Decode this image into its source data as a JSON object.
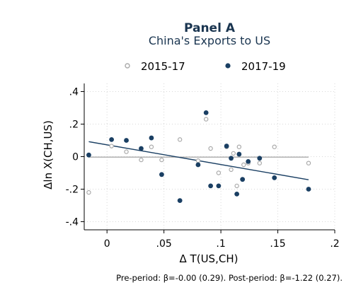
{
  "chart_data": {
    "type": "scatter",
    "title": "Panel A",
    "subtitle": "China's Exports to US",
    "xlabel": "Δ T(US,CH)",
    "ylabel": "Δln X(CH,US)",
    "xlim": [
      -0.02,
      0.2
    ],
    "ylim": [
      -0.45,
      0.45
    ],
    "xticks": [
      0,
      0.05,
      0.1,
      0.15,
      0.2
    ],
    "xtick_labels": [
      "0",
      ".05",
      ".1",
      ".15",
      ".2"
    ],
    "yticks": [
      -0.4,
      -0.2,
      0,
      0.2,
      0.4
    ],
    "ytick_labels": [
      "-.4",
      "-.2",
      "0",
      ".2",
      ".4"
    ],
    "grid": "dotted",
    "legend_position": "top",
    "note": "Pre-period: β=-0.00 (0.29). Post-period: β=-1.22 (0.27).",
    "series": [
      {
        "name": "2015-17",
        "marker": "hollow-circle",
        "color": "#aaaaaa",
        "points": [
          [
            -0.016,
            -0.22
          ],
          [
            0.004,
            0.065
          ],
          [
            0.017,
            0.03
          ],
          [
            0.03,
            -0.02
          ],
          [
            0.039,
            0.06
          ],
          [
            0.048,
            -0.02
          ],
          [
            0.064,
            0.105
          ],
          [
            0.08,
            -0.025
          ],
          [
            0.087,
            0.23
          ],
          [
            0.091,
            0.05
          ],
          [
            0.098,
            -0.1
          ],
          [
            0.105,
            0.06
          ],
          [
            0.109,
            -0.08
          ],
          [
            0.111,
            0.02
          ],
          [
            0.114,
            -0.18
          ],
          [
            0.116,
            0.06
          ],
          [
            0.12,
            -0.05
          ],
          [
            0.124,
            -0.04
          ],
          [
            0.134,
            -0.04
          ],
          [
            0.147,
            0.06
          ],
          [
            0.177,
            -0.04
          ]
        ]
      },
      {
        "name": "2017-19",
        "marker": "filled-circle",
        "color": "#1a3f63",
        "points": [
          [
            -0.016,
            0.01
          ],
          [
            0.004,
            0.105
          ],
          [
            0.017,
            0.1
          ],
          [
            0.03,
            0.05
          ],
          [
            0.039,
            0.115
          ],
          [
            0.048,
            -0.11
          ],
          [
            0.064,
            -0.27
          ],
          [
            0.08,
            -0.05
          ],
          [
            0.087,
            0.27
          ],
          [
            0.091,
            -0.18
          ],
          [
            0.098,
            -0.18
          ],
          [
            0.105,
            0.065
          ],
          [
            0.109,
            -0.01
          ],
          [
            0.114,
            -0.23
          ],
          [
            0.116,
            0.015
          ],
          [
            0.119,
            -0.14
          ],
          [
            0.124,
            -0.03
          ],
          [
            0.134,
            -0.01
          ],
          [
            0.147,
            -0.13
          ],
          [
            0.177,
            -0.2
          ]
        ]
      }
    ],
    "fit_lines": [
      {
        "series": "2015-17",
        "color": "#aaaaaa",
        "x": [
          -0.016,
          0.177
        ],
        "y": [
          -0.003,
          -0.003
        ]
      },
      {
        "series": "2017-19",
        "color": "#1a3f63",
        "x": [
          -0.016,
          0.177
        ],
        "y": [
          0.092,
          -0.142
        ]
      }
    ]
  }
}
